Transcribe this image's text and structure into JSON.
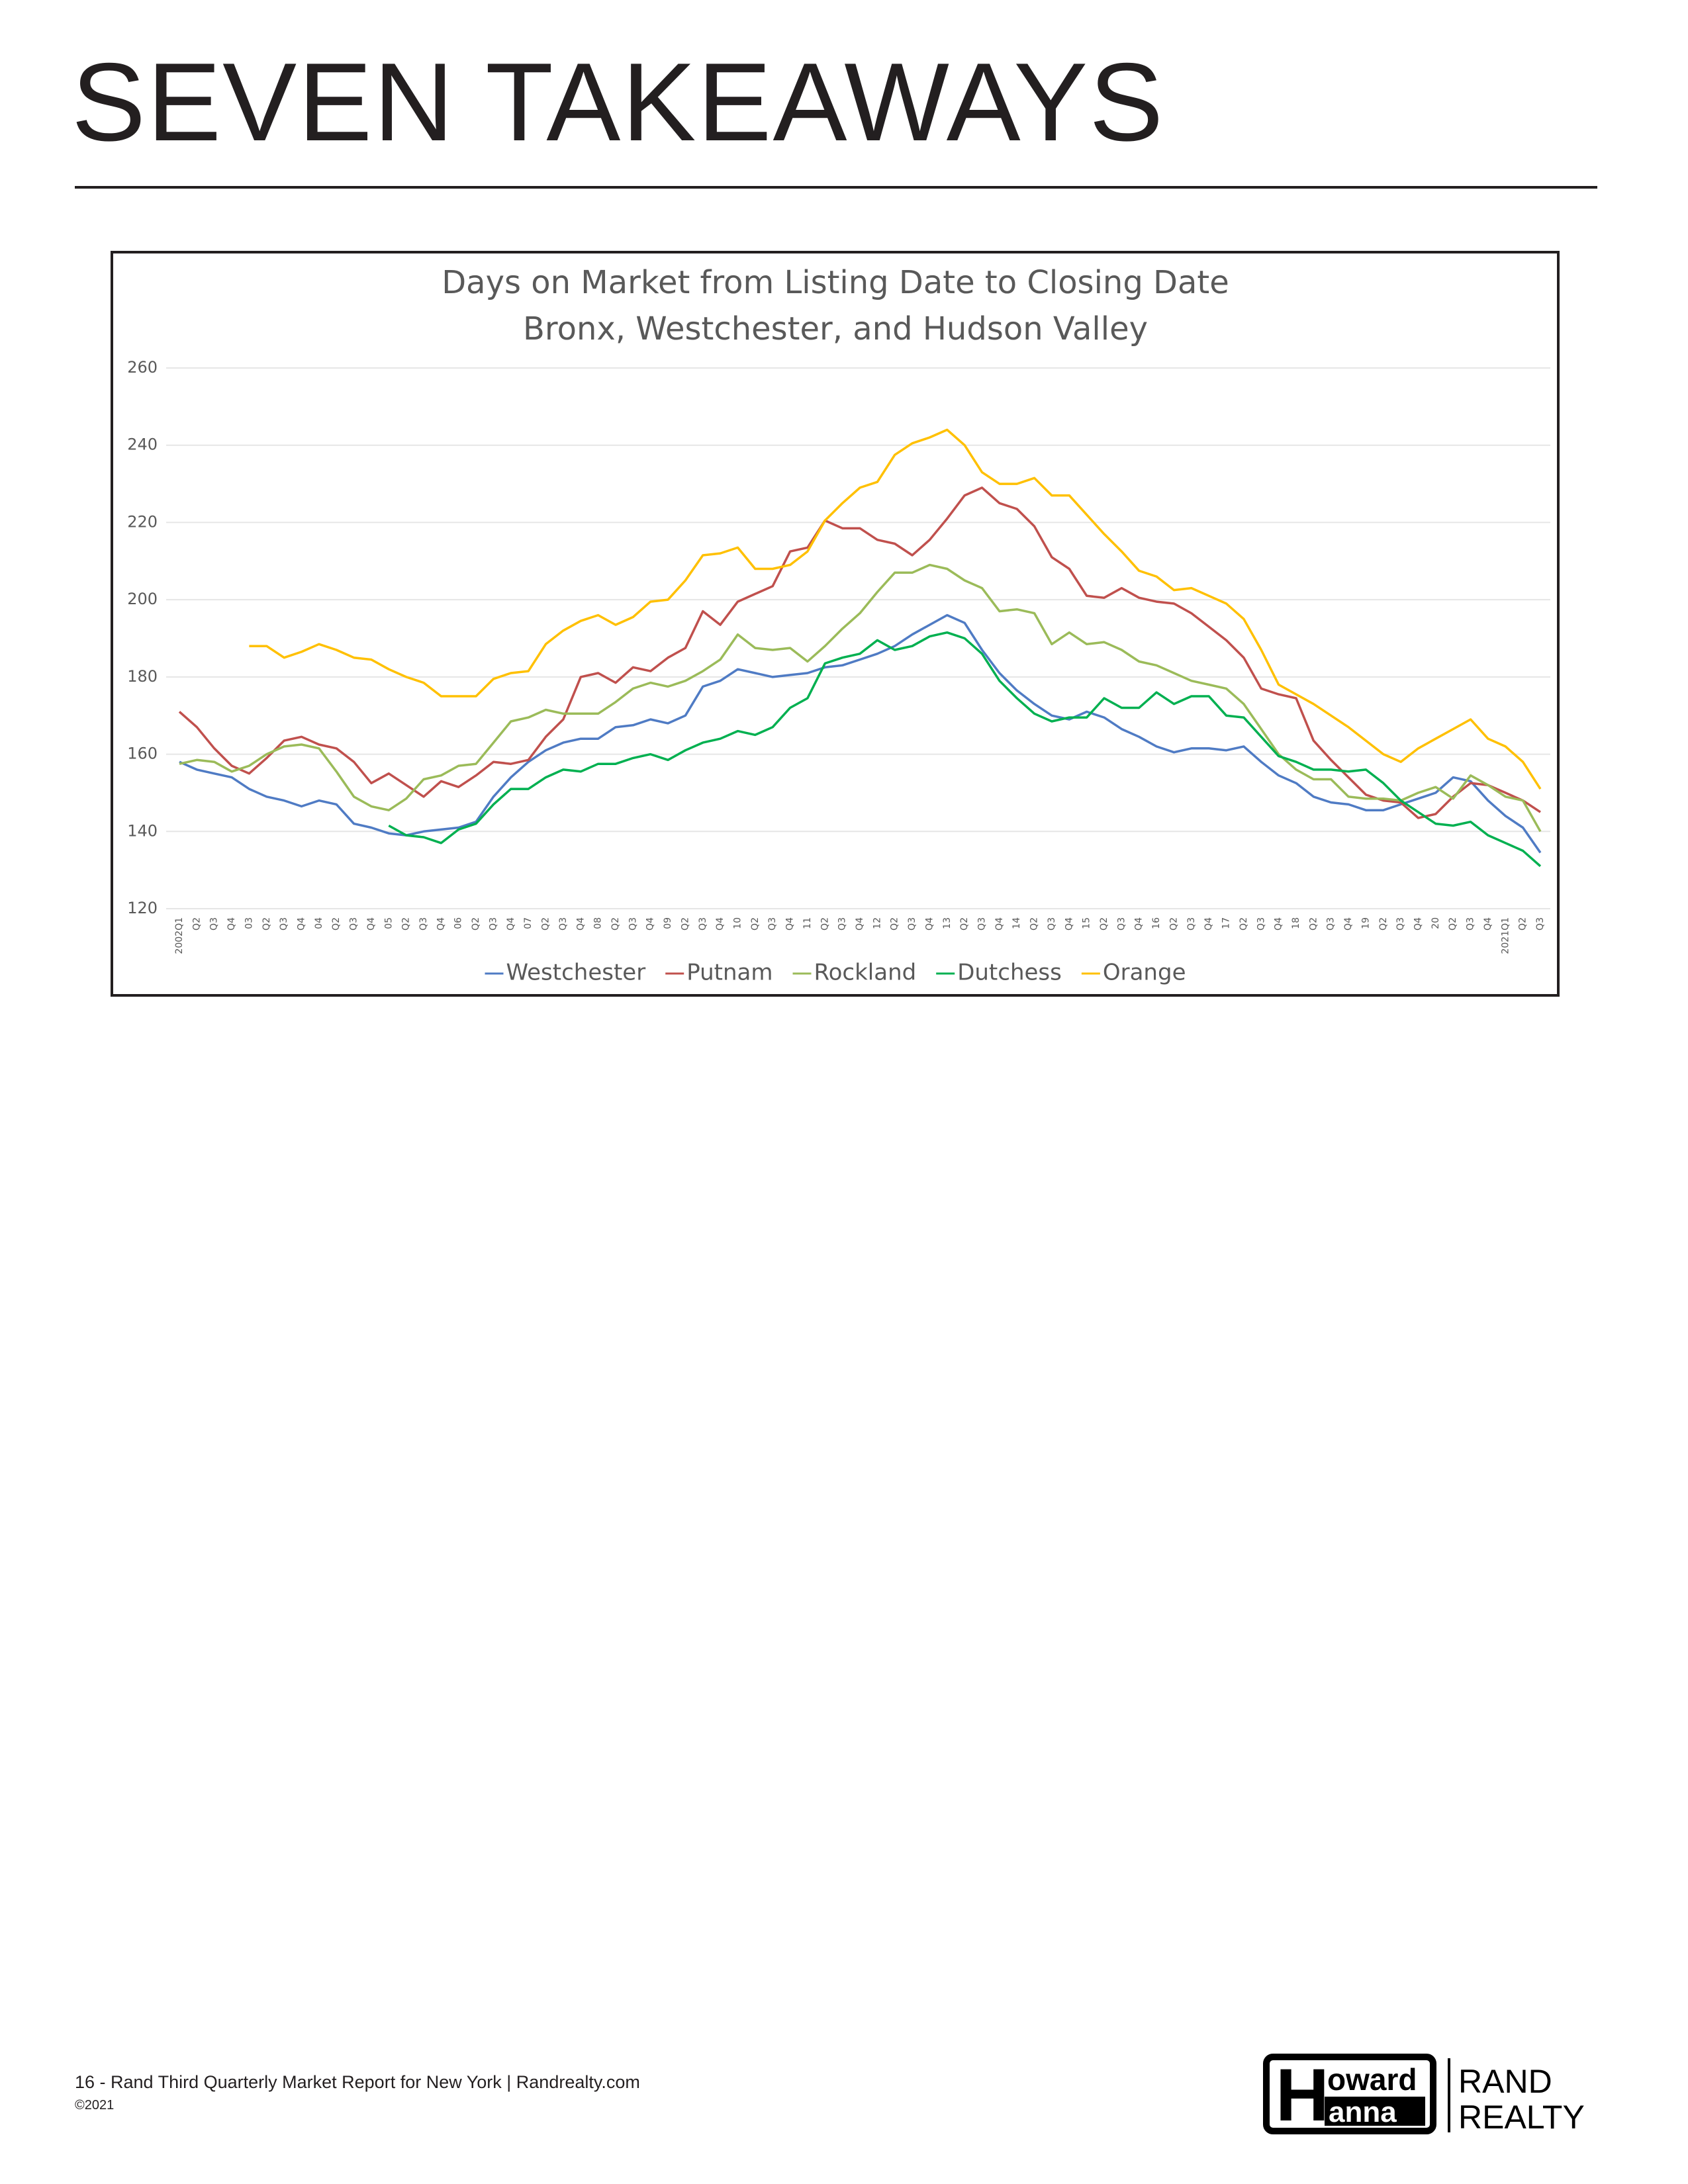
{
  "header": {
    "title": "SEVEN TAKEAWAYS"
  },
  "chart_data": {
    "type": "line",
    "title": "Days on Market from Listing Date to Closing Date",
    "subtitle": "Bronx, Westchester, and Hudson Valley",
    "categories": [
      "2002Q1",
      "Q2",
      "Q3",
      "Q4",
      "03",
      "Q2",
      "Q3",
      "Q4",
      "04",
      "Q2",
      "Q3",
      "Q4",
      "05",
      "Q2",
      "Q3",
      "Q4",
      "06",
      "Q2",
      "Q3",
      "Q4",
      "07",
      "Q2",
      "Q3",
      "Q4",
      "08",
      "Q2",
      "Q3",
      "Q4",
      "09",
      "Q2",
      "Q3",
      "Q4",
      "10",
      "Q2",
      "Q3",
      "Q4",
      "11",
      "Q2",
      "Q3",
      "Q4",
      "12",
      "Q2",
      "Q3",
      "Q4",
      "13",
      "Q2",
      "Q3",
      "Q4",
      "14",
      "Q2",
      "Q3",
      "Q4",
      "15",
      "Q2",
      "Q3",
      "Q4",
      "16",
      "Q2",
      "Q3",
      "Q4",
      "17",
      "Q2",
      "Q3",
      "Q4",
      "18",
      "Q2",
      "Q3",
      "Q4",
      "19",
      "Q2",
      "Q3",
      "Q4",
      "20",
      "Q2",
      "Q3",
      "Q4",
      "2021Q1",
      "Q2",
      "Q3"
    ],
    "ylim": [
      120,
      260
    ],
    "yticks": [
      120,
      140,
      160,
      180,
      200,
      220,
      240,
      260
    ],
    "grid": true,
    "legend": "bottom",
    "series": [
      {
        "name": "Westchester",
        "color": "#4f7bc4",
        "values": [
          158,
          156,
          155,
          154,
          151,
          149,
          148,
          146.5,
          148,
          147,
          142,
          141,
          139.5,
          139,
          140,
          140.5,
          141,
          142.5,
          149,
          154,
          158,
          161,
          163,
          164,
          164,
          167,
          167.5,
          169,
          168,
          170,
          177.5,
          179,
          182,
          181,
          180,
          180.5,
          181,
          182.5,
          183,
          184.5,
          186,
          188,
          191,
          193.5,
          196,
          194,
          187,
          181,
          176.5,
          173,
          170,
          169,
          171,
          169.5,
          166.5,
          164.5,
          162,
          160.5,
          161.5,
          161.5,
          161,
          162,
          158,
          154.5,
          152.5,
          149,
          147.5,
          147,
          145.5,
          145.5,
          147,
          148.5,
          150,
          154,
          153,
          148,
          144,
          141,
          134.5
        ]
      },
      {
        "name": "Putnam",
        "color": "#c0504d",
        "values": [
          171,
          167,
          161.5,
          157,
          155,
          159,
          163.5,
          164.5,
          162.5,
          161.5,
          158,
          152.5,
          155,
          152,
          149,
          153,
          151.5,
          154.5,
          158,
          157.5,
          158.5,
          164.5,
          169,
          180,
          181,
          178.5,
          182.5,
          181.5,
          185,
          187.5,
          197,
          193.5,
          199.5,
          201.5,
          203.5,
          212.5,
          213.5,
          220.5,
          218.5,
          218.5,
          215.5,
          214.5,
          211.5,
          215.5,
          221,
          227,
          229,
          225,
          223.5,
          219,
          211,
          208,
          201,
          200.5,
          203,
          200.5,
          199.5,
          199,
          196.5,
          193,
          189.5,
          185,
          177,
          175.5,
          174.5,
          163.5,
          158.5,
          154,
          149.5,
          148,
          147.5,
          143.5,
          144.5,
          149,
          152.5,
          152,
          150,
          148,
          145
        ]
      },
      {
        "name": "Rockland",
        "color": "#9bbb59",
        "values": [
          157.5,
          158.5,
          158,
          155.5,
          157,
          160,
          162,
          162.5,
          161.5,
          155.5,
          149,
          146.5,
          145.5,
          148.5,
          153.5,
          154.5,
          157,
          157.5,
          163,
          168.5,
          169.5,
          171.5,
          170.5,
          170.5,
          170.5,
          173.5,
          177,
          178.5,
          177.5,
          179,
          181.5,
          184.5,
          191,
          187.5,
          187,
          187.5,
          184,
          188,
          192.5,
          196.5,
          202,
          207,
          207,
          209,
          208,
          205,
          203,
          197,
          197.5,
          196.5,
          188.5,
          191.5,
          188.5,
          189,
          187,
          184,
          183,
          181,
          179,
          178,
          177,
          173,
          166.5,
          160,
          156,
          153.5,
          153.5,
          149,
          148.5,
          148.5,
          148,
          150,
          151.5,
          148.5,
          154.5,
          152,
          149,
          148,
          140
        ]
      },
      {
        "name": "Dutchess",
        "color": "#00b050",
        "values": [
          null,
          null,
          null,
          null,
          null,
          null,
          null,
          null,
          null,
          null,
          null,
          null,
          141.5,
          139,
          138.5,
          137,
          140.5,
          142,
          147,
          151,
          151,
          154,
          156,
          155.5,
          157.5,
          157.5,
          159,
          160,
          158.5,
          161,
          163,
          164,
          166,
          165,
          167,
          172,
          174.5,
          183.5,
          185,
          186,
          189.5,
          187,
          188,
          190.5,
          191.5,
          190,
          186,
          179,
          174.5,
          170.5,
          168.5,
          169.5,
          169.5,
          174.5,
          172,
          172,
          176,
          173,
          175,
          175,
          170,
          169.5,
          164.5,
          159.5,
          158,
          156,
          156,
          155.5,
          156,
          152.5,
          148,
          145,
          142,
          141.5,
          142.5,
          139,
          137,
          135,
          131
        ]
      },
      {
        "name": "Orange",
        "color": "#ffc000",
        "values": [
          null,
          null,
          null,
          null,
          188,
          188,
          185,
          186.5,
          188.5,
          187,
          185,
          184.5,
          182,
          180,
          178.5,
          175,
          175,
          175,
          179.5,
          181,
          181.5,
          188.5,
          192,
          194.5,
          196,
          193.5,
          195.5,
          199.5,
          200,
          205,
          211.5,
          212,
          213.5,
          208,
          208,
          209,
          212.5,
          220.5,
          225,
          229,
          230.5,
          237.5,
          240.5,
          242,
          244,
          240,
          233,
          230,
          230,
          231.5,
          227,
          227,
          222,
          217,
          212.5,
          207.5,
          206,
          202.5,
          203,
          201,
          199,
          195,
          187,
          178,
          175.5,
          173,
          170,
          167,
          163.5,
          160,
          158,
          161.5,
          164,
          166.5,
          169,
          164,
          162,
          158,
          151
        ]
      }
    ]
  },
  "footer": {
    "text": "16 - Rand Third Quarterly Market Report for New York  |  Randrealty.com",
    "copyright": "©2021"
  },
  "logo": {
    "line1": "oward",
    "line2": "anna",
    "initial": "H",
    "brand1": "RAND",
    "brand2": "REALTY"
  }
}
